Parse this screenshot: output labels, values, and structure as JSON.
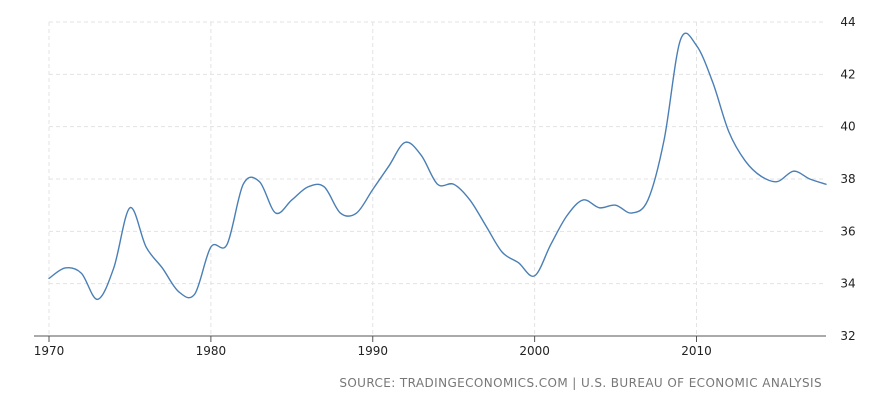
{
  "chart_data": {
    "type": "line",
    "title": "",
    "xlabel": "",
    "ylabel": "",
    "xlim": [
      1970,
      2018
    ],
    "ylim": [
      32,
      44
    ],
    "x_ticks": [
      1970,
      1980,
      1990,
      2000,
      2010
    ],
    "y_ticks": [
      32,
      34,
      36,
      38,
      40,
      42,
      44
    ],
    "grid": true,
    "legend": "none",
    "line_color": "#4a7fb5",
    "series": [
      {
        "values": [
          [
            1970,
            34.2
          ],
          [
            1971,
            34.6
          ],
          [
            1972,
            34.4
          ],
          [
            1973,
            33.4
          ],
          [
            1974,
            34.6
          ],
          [
            1975,
            36.9
          ],
          [
            1976,
            35.4
          ],
          [
            1977,
            34.6
          ],
          [
            1978,
            33.7
          ],
          [
            1979,
            33.6
          ],
          [
            1980,
            35.4
          ],
          [
            1981,
            35.5
          ],
          [
            1982,
            37.8
          ],
          [
            1983,
            37.9
          ],
          [
            1984,
            36.7
          ],
          [
            1985,
            37.2
          ],
          [
            1986,
            37.7
          ],
          [
            1987,
            37.7
          ],
          [
            1988,
            36.7
          ],
          [
            1989,
            36.7
          ],
          [
            1990,
            37.6
          ],
          [
            1991,
            38.5
          ],
          [
            1992,
            39.4
          ],
          [
            1993,
            38.9
          ],
          [
            1994,
            37.8
          ],
          [
            1995,
            37.8
          ],
          [
            1996,
            37.2
          ],
          [
            1997,
            36.2
          ],
          [
            1998,
            35.2
          ],
          [
            1999,
            34.8
          ],
          [
            2000,
            34.3
          ],
          [
            2001,
            35.5
          ],
          [
            2002,
            36.6
          ],
          [
            2003,
            37.2
          ],
          [
            2004,
            36.9
          ],
          [
            2005,
            37.0
          ],
          [
            2006,
            36.7
          ],
          [
            2007,
            37.2
          ],
          [
            2008,
            39.5
          ],
          [
            2009,
            43.3
          ],
          [
            2010,
            43.1
          ],
          [
            2011,
            41.7
          ],
          [
            2012,
            39.8
          ],
          [
            2013,
            38.7
          ],
          [
            2014,
            38.1
          ],
          [
            2015,
            37.9
          ],
          [
            2016,
            38.3
          ],
          [
            2017,
            38.0
          ],
          [
            2018,
            37.8
          ]
        ]
      }
    ]
  },
  "source_text": "SOURCE: TRADINGECONOMICS.COM | U.S. BUREAU OF ECONOMIC ANALYSIS"
}
